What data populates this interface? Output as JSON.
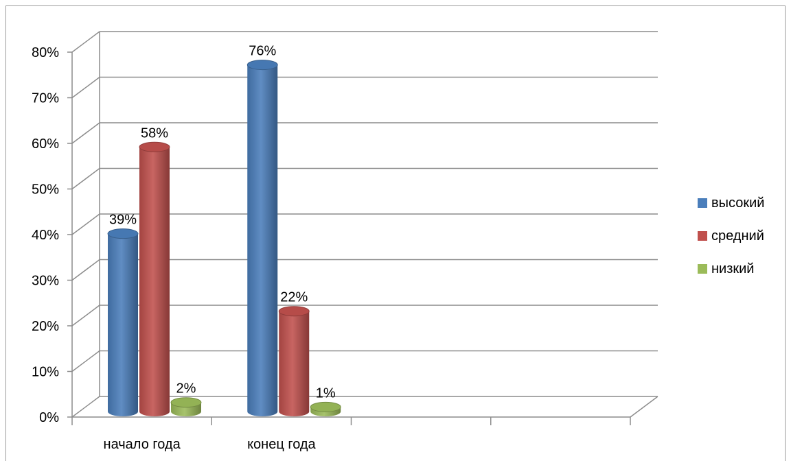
{
  "chart_data": {
    "type": "bar",
    "style": "3d-cylinder",
    "categories": [
      "начало года",
      "конец года"
    ],
    "series": [
      {
        "name": "высокий",
        "values": [
          39,
          76
        ],
        "labels": [
          "39%",
          "76%"
        ],
        "color": "#4a7ebb"
      },
      {
        "name": "средний",
        "values": [
          58,
          22
        ],
        "labels": [
          "58%",
          "22%"
        ],
        "color": "#c0504d"
      },
      {
        "name": "низкий",
        "values": [
          2,
          1
        ],
        "labels": [
          "2%",
          "1%"
        ],
        "color": "#9bbb59"
      }
    ],
    "ylim": [
      0,
      80
    ],
    "yticks": [
      "0%",
      "10%",
      "20%",
      "30%",
      "40%",
      "50%",
      "60%",
      "70%",
      "80%"
    ],
    "grid": true,
    "legend_position": "right"
  }
}
